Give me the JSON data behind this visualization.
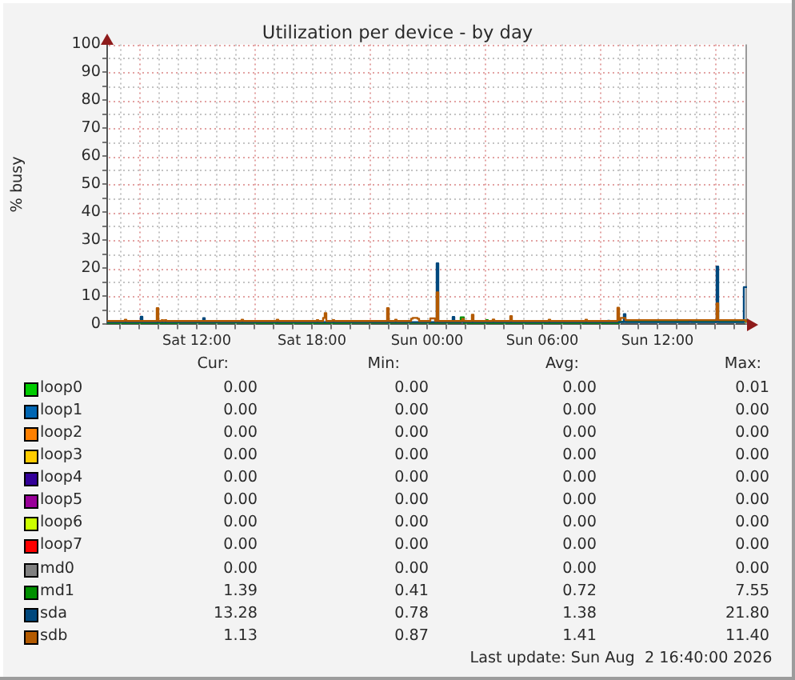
{
  "chart_data": {
    "type": "step",
    "title": "Utilization per device - by day",
    "ylabel": "% busy",
    "xlim": [
      "2026-08-01T07:20",
      "2026-08-02T16:40"
    ],
    "xticks": [
      {
        "value": "2026-08-01T08:00",
        "label": null
      },
      {
        "value": "2026-08-01T09:00",
        "label": null
      },
      {
        "value": "2026-08-01T10:00",
        "label": null
      },
      {
        "value": "2026-08-01T11:00",
        "label": null
      },
      {
        "value": "2026-08-01T12:00",
        "label": "Sat 12:00"
      },
      {
        "value": "2026-08-01T13:00",
        "label": null
      },
      {
        "value": "2026-08-01T14:00",
        "label": null
      },
      {
        "value": "2026-08-01T15:00",
        "label": null
      },
      {
        "value": "2026-08-01T16:00",
        "label": null
      },
      {
        "value": "2026-08-01T17:00",
        "label": null
      },
      {
        "value": "2026-08-01T18:00",
        "label": "Sat 18:00"
      },
      {
        "value": "2026-08-01T19:00",
        "label": null
      },
      {
        "value": "2026-08-01T20:00",
        "label": null
      },
      {
        "value": "2026-08-01T21:00",
        "label": null
      },
      {
        "value": "2026-08-01T22:00",
        "label": null
      },
      {
        "value": "2026-08-01T23:00",
        "label": null
      },
      {
        "value": "2026-08-02T00:00",
        "label": "Sun 00:00"
      },
      {
        "value": "2026-08-02T01:00",
        "label": null
      },
      {
        "value": "2026-08-02T02:00",
        "label": null
      },
      {
        "value": "2026-08-02T03:00",
        "label": null
      },
      {
        "value": "2026-08-02T04:00",
        "label": null
      },
      {
        "value": "2026-08-02T05:00",
        "label": null
      },
      {
        "value": "2026-08-02T06:00",
        "label": "Sun 06:00"
      },
      {
        "value": "2026-08-02T07:00",
        "label": null
      },
      {
        "value": "2026-08-02T08:00",
        "label": null
      },
      {
        "value": "2026-08-02T09:00",
        "label": null
      },
      {
        "value": "2026-08-02T10:00",
        "label": null
      },
      {
        "value": "2026-08-02T11:00",
        "label": null
      },
      {
        "value": "2026-08-02T12:00",
        "label": "Sun 12:00"
      },
      {
        "value": "2026-08-02T13:00",
        "label": null
      },
      {
        "value": "2026-08-02T14:00",
        "label": null
      },
      {
        "value": "2026-08-02T15:00",
        "label": null
      },
      {
        "value": "2026-08-02T16:00",
        "label": null
      }
    ],
    "ylim": [
      0,
      100
    ],
    "yticks": [
      0,
      {
        "value": 5,
        "label": null
      },
      10,
      {
        "value": 15,
        "label": null
      },
      20,
      {
        "value": 25,
        "label": null
      },
      30,
      {
        "value": 35,
        "label": null
      },
      40,
      {
        "value": 45,
        "label": null
      },
      50,
      {
        "value": 55,
        "label": null
      },
      60,
      {
        "value": 65,
        "label": null
      },
      70,
      {
        "value": 75,
        "label": null
      },
      80,
      {
        "value": 85,
        "label": null
      },
      90,
      {
        "value": 95,
        "label": null
      },
      100
    ],
    "grid": true,
    "legend": "bottom",
    "series": [
      {
        "name": "loop0",
        "color": "#00cc00"
      },
      {
        "name": "loop1",
        "color": "#0066b3"
      },
      {
        "name": "loop2",
        "color": "#ff8000"
      },
      {
        "name": "loop3",
        "color": "#ffcc00"
      },
      {
        "name": "loop4",
        "color": "#330099"
      },
      {
        "name": "loop5",
        "color": "#990099"
      },
      {
        "name": "loop6",
        "color": "#ccff00"
      },
      {
        "name": "loop7",
        "color": "#ff0000"
      },
      {
        "name": "md0",
        "color": "#808080"
      },
      {
        "name": "md1",
        "color": "#008f00",
        "x": [
          "2026-08-01T07:20",
          "2026-08-01T11:00",
          "2026-08-01T15:00",
          "2026-08-01T20:00",
          "2026-08-02T01:45",
          "2026-08-02T01:55",
          "2026-08-02T03:05",
          "2026-08-02T03:10",
          "2026-08-02T10:00",
          "2026-08-02T16:35",
          "2026-08-02T16:40"
        ],
        "values": [
          0.5,
          0.6,
          0.5,
          0.6,
          2.5,
          0.5,
          1.5,
          0.5,
          0.9,
          1.39,
          1.39
        ]
      },
      {
        "name": "sda",
        "color": "#00487d",
        "x": [
          "2026-08-01T07:20",
          "2026-08-01T09:05",
          "2026-08-01T09:10",
          "2026-08-01T12:20",
          "2026-08-01T12:25",
          "2026-08-02T00:30",
          "2026-08-02T00:35",
          "2026-08-02T01:20",
          "2026-08-02T01:25",
          "2026-08-02T03:25",
          "2026-08-02T03:30",
          "2026-08-02T09:25",
          "2026-08-02T09:30",
          "2026-08-02T10:15",
          "2026-08-02T10:20",
          "2026-08-02T13:40",
          "2026-08-02T13:45",
          "2026-08-02T15:05",
          "2026-08-02T15:10",
          "2026-08-02T16:30",
          "2026-08-02T16:40"
        ],
        "values": [
          0.8,
          2.7,
          0.8,
          2.2,
          0.8,
          21.8,
          0.8,
          2.6,
          0.8,
          1.3,
          0.8,
          1.3,
          0.8,
          3.6,
          0.8,
          1.5,
          0.8,
          20.6,
          0.8,
          13.28,
          13.28
        ]
      },
      {
        "name": "sdb",
        "color": "#b35a00",
        "x": [
          "2026-08-01T07:20",
          "2026-08-01T08:15",
          "2026-08-01T08:20",
          "2026-08-01T09:55",
          "2026-08-01T10:00",
          "2026-08-01T10:10",
          "2026-08-01T10:15",
          "2026-08-01T10:20",
          "2026-08-01T10:25",
          "2026-08-01T14:20",
          "2026-08-01T14:25",
          "2026-08-01T16:10",
          "2026-08-01T16:15",
          "2026-08-01T18:15",
          "2026-08-01T18:20",
          "2026-08-01T18:35",
          "2026-08-01T18:40",
          "2026-08-01T18:45",
          "2026-08-01T19:05",
          "2026-08-01T19:10",
          "2026-08-01T21:55",
          "2026-08-01T22:00",
          "2026-08-01T22:20",
          "2026-08-01T22:25",
          "2026-08-01T23:10",
          "2026-08-01T23:15",
          "2026-08-01T23:30",
          "2026-08-01T23:35",
          "2026-08-02T00:10",
          "2026-08-02T00:25",
          "2026-08-02T00:30",
          "2026-08-02T00:35",
          "2026-08-02T01:50",
          "2026-08-02T01:55",
          "2026-08-02T02:20",
          "2026-08-02T02:25",
          "2026-08-02T03:25",
          "2026-08-02T03:30",
          "2026-08-02T04:20",
          "2026-08-02T04:25",
          "2026-08-02T06:20",
          "2026-08-02T06:25",
          "2026-08-02T08:15",
          "2026-08-02T08:20",
          "2026-08-02T09:55",
          "2026-08-02T10:00",
          "2026-08-02T10:05",
          "2026-08-02T10:20",
          "2026-08-02T15:05",
          "2026-08-02T15:10",
          "2026-08-02T16:35",
          "2026-08-02T16:40"
        ],
        "values": [
          1.2,
          1.6,
          1.2,
          5.8,
          1.2,
          1.5,
          1.2,
          1.5,
          1.2,
          1.6,
          1.2,
          1.6,
          1.2,
          1.5,
          1.2,
          2.3,
          4.0,
          1.2,
          1.5,
          1.2,
          5.8,
          1.2,
          1.6,
          1.2,
          2.0,
          2.3,
          2.0,
          1.2,
          2.1,
          1.2,
          11.4,
          1.2,
          1.9,
          1.2,
          3.4,
          1.2,
          1.7,
          1.2,
          2.9,
          1.2,
          1.6,
          1.2,
          1.6,
          1.2,
          5.9,
          1.5,
          2.3,
          1.5,
          7.5,
          1.5,
          1.13,
          1.13
        ]
      }
    ],
    "annotations": [
      "Cur:",
      "Min:",
      "Avg:",
      "Max:",
      "0.00",
      "0.00",
      "0.00",
      "0.01",
      "0.00",
      "0.00",
      "0.00",
      "0.00",
      "0.00",
      "0.00",
      "0.00",
      "0.00",
      "0.00",
      "0.00",
      "0.00",
      "0.00",
      "0.00",
      "0.00",
      "0.00",
      "0.00",
      "0.00",
      "0.00",
      "0.00",
      "0.00",
      "0.00",
      "0.00",
      "0.00",
      "0.00",
      "0.00",
      "0.00",
      "0.00",
      "0.00",
      "0.00",
      "0.00",
      "0.00",
      "0.00",
      "1.39",
      "0.41",
      "0.72",
      "7.55",
      "13.28",
      "0.78",
      "1.38",
      "21.80",
      "1.13",
      "0.87",
      "1.41",
      "11.40",
      "Last update: Sun Aug  2 16:40:00 2026"
    ]
  }
}
